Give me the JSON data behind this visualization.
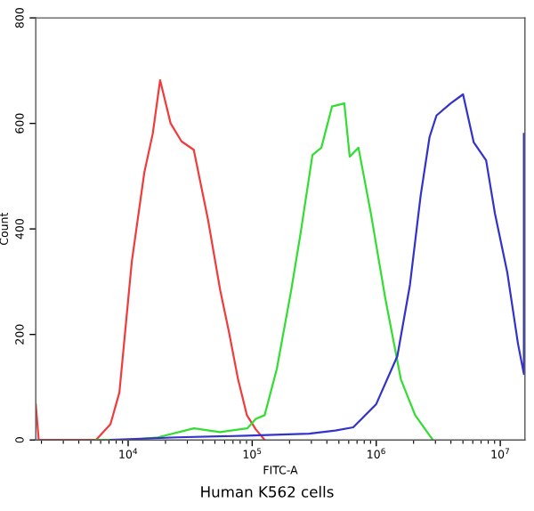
{
  "chart_data": {
    "type": "line",
    "xlabel": "FITC-A",
    "ylabel": "Count",
    "annotations": [
      "Human K562 cells"
    ],
    "log": "x",
    "xlim": [
      1800,
      15800000
    ],
    "ylim": [
      0,
      800
    ],
    "xticks": [
      {
        "value": 10000,
        "label": "10$^{4}$"
      },
      {
        "value": 100000,
        "label": "10$^{5}$"
      },
      {
        "value": 1000000,
        "label": "10$^{6}$"
      },
      {
        "value": 10000000,
        "label": "10$^{7}$"
      }
    ],
    "yticks": [
      0,
      200,
      400,
      600,
      800
    ],
    "grid": false,
    "legend": false,
    "marker": "none",
    "line_style": "solid",
    "series": [
      {
        "color": "#f03c3c",
        "x": [
          1800,
          1900,
          5500,
          7200,
          8500,
          10700,
          13500,
          15800,
          18100,
          22000,
          26900,
          33800,
          44000,
          55300,
          65200,
          76900,
          90600,
          107000,
          126000
        ],
        "values": [
          68,
          0,
          0,
          30,
          90,
          338,
          507,
          581,
          682,
          600,
          566,
          550,
          418,
          283,
          203,
          115,
          47,
          20,
          0
        ]
      },
      {
        "color": "#33dd33",
        "x": [
          5500,
          10700,
          17400,
          33900,
          55000,
          91200,
          107000,
          126000,
          158000,
          206000,
          243000,
          306000,
          361000,
          440000,
          553000,
          611000,
          719000,
          906000,
          1180000,
          1580000,
          2060000,
          2860000
        ],
        "values": [
          0,
          0,
          5,
          22,
          15,
          22,
          40,
          47,
          135,
          283,
          385,
          540,
          554,
          632,
          638,
          537,
          554,
          429,
          270,
          115,
          47,
          0
        ]
      },
      {
        "color": "#3333cc",
        "x": [
          7200,
          24500,
          91200,
          288000,
          468000,
          652000,
          1000000,
          1480000,
          1870000,
          2280000,
          2690000,
          3060000,
          3980000,
          5010000,
          6110000,
          7690000,
          9060000,
          11400000,
          13900000,
          15500000,
          15500000
        ],
        "values": [
          0,
          5,
          8,
          12,
          18,
          24,
          68,
          159,
          294,
          463,
          574,
          615,
          638,
          655,
          564,
          530,
          429,
          317,
          182,
          125,
          580
        ]
      }
    ]
  }
}
